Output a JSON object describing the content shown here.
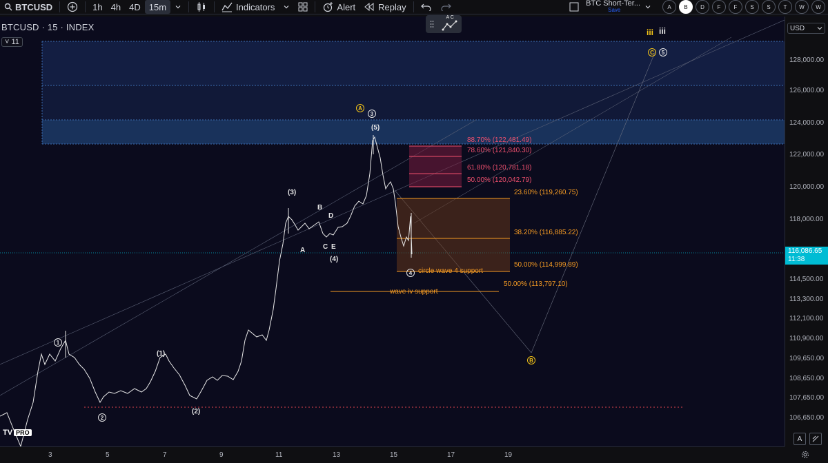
{
  "toolbar": {
    "symbol": "BTCUSD",
    "intervals": [
      "1h",
      "4h",
      "4D",
      "15m"
    ],
    "active_interval": "15m",
    "indicators_label": "Indicators",
    "alert_label": "Alert",
    "replay_label": "Replay",
    "layout_name": "BTC Short-Ter...",
    "layout_save_label": "Save",
    "watchlist_buttons": [
      "A",
      "B",
      "D",
      "F",
      "F",
      "S",
      "S",
      "T",
      "W",
      "W"
    ],
    "active_watchlist": "B"
  },
  "chart": {
    "title": "BTCUSD · 15 · INDEX",
    "interval_badge": "11",
    "logo": "TV",
    "logo_badge": "PRO",
    "draw_panel_letters": "A C",
    "colors": {
      "background": "#0b0b1d",
      "candle": "#e8e8e8",
      "zone_blue": "#1c3a66",
      "fib_red": "#f0506e",
      "fib_orange": "#f59b23",
      "support_red": "#e0464e",
      "accent_cyan": "#00bcd4"
    }
  },
  "price_scale": {
    "currency": "USD",
    "ticks": [
      "128,000.00",
      "126,000.00",
      "124,000.00",
      "122,000.00",
      "120,000.00",
      "118,000.00",
      "114,500.00",
      "113,300.00",
      "112,100.00",
      "110,900.00",
      "109,650.00",
      "108,650.00",
      "107,650.00",
      "106,650.00"
    ],
    "last_price": "116,086.65",
    "countdown": "11:38",
    "auto_label": "A"
  },
  "time_axis": {
    "ticks": [
      "3",
      "5",
      "7",
      "9",
      "11",
      "13",
      "15",
      "17",
      "19"
    ]
  },
  "annotations": {
    "fib_red": [
      "88.70% (122,481.49)",
      "78.60% (121,840.30)",
      "61.80% (120,781.18)",
      "50.00% (120,042.79)"
    ],
    "fib_orange": [
      "23.60% (119,260.75)",
      "38.20% (116,885.22)",
      "50.00% (114,999.89)"
    ],
    "circle_wave4": "circle wave 4 support",
    "wave_iv_fib": "50.00% (113,797.10)",
    "wave_iv": "wave iv support",
    "wave_labels": {
      "w1": "(1)",
      "w2": "(2)",
      "w3": "(3)",
      "w4": "(4)",
      "w5": "(5)",
      "A": "A",
      "B": "B",
      "C": "C",
      "D": "D",
      "E": "E",
      "iii_yellow": "iii",
      "iii_white": "iii"
    },
    "circled": {
      "one": "1",
      "two": "2",
      "three": "3",
      "four": "4",
      "five": "5",
      "A_yellow": "A",
      "B_yellow": "B",
      "C_yellow": "C"
    }
  }
}
